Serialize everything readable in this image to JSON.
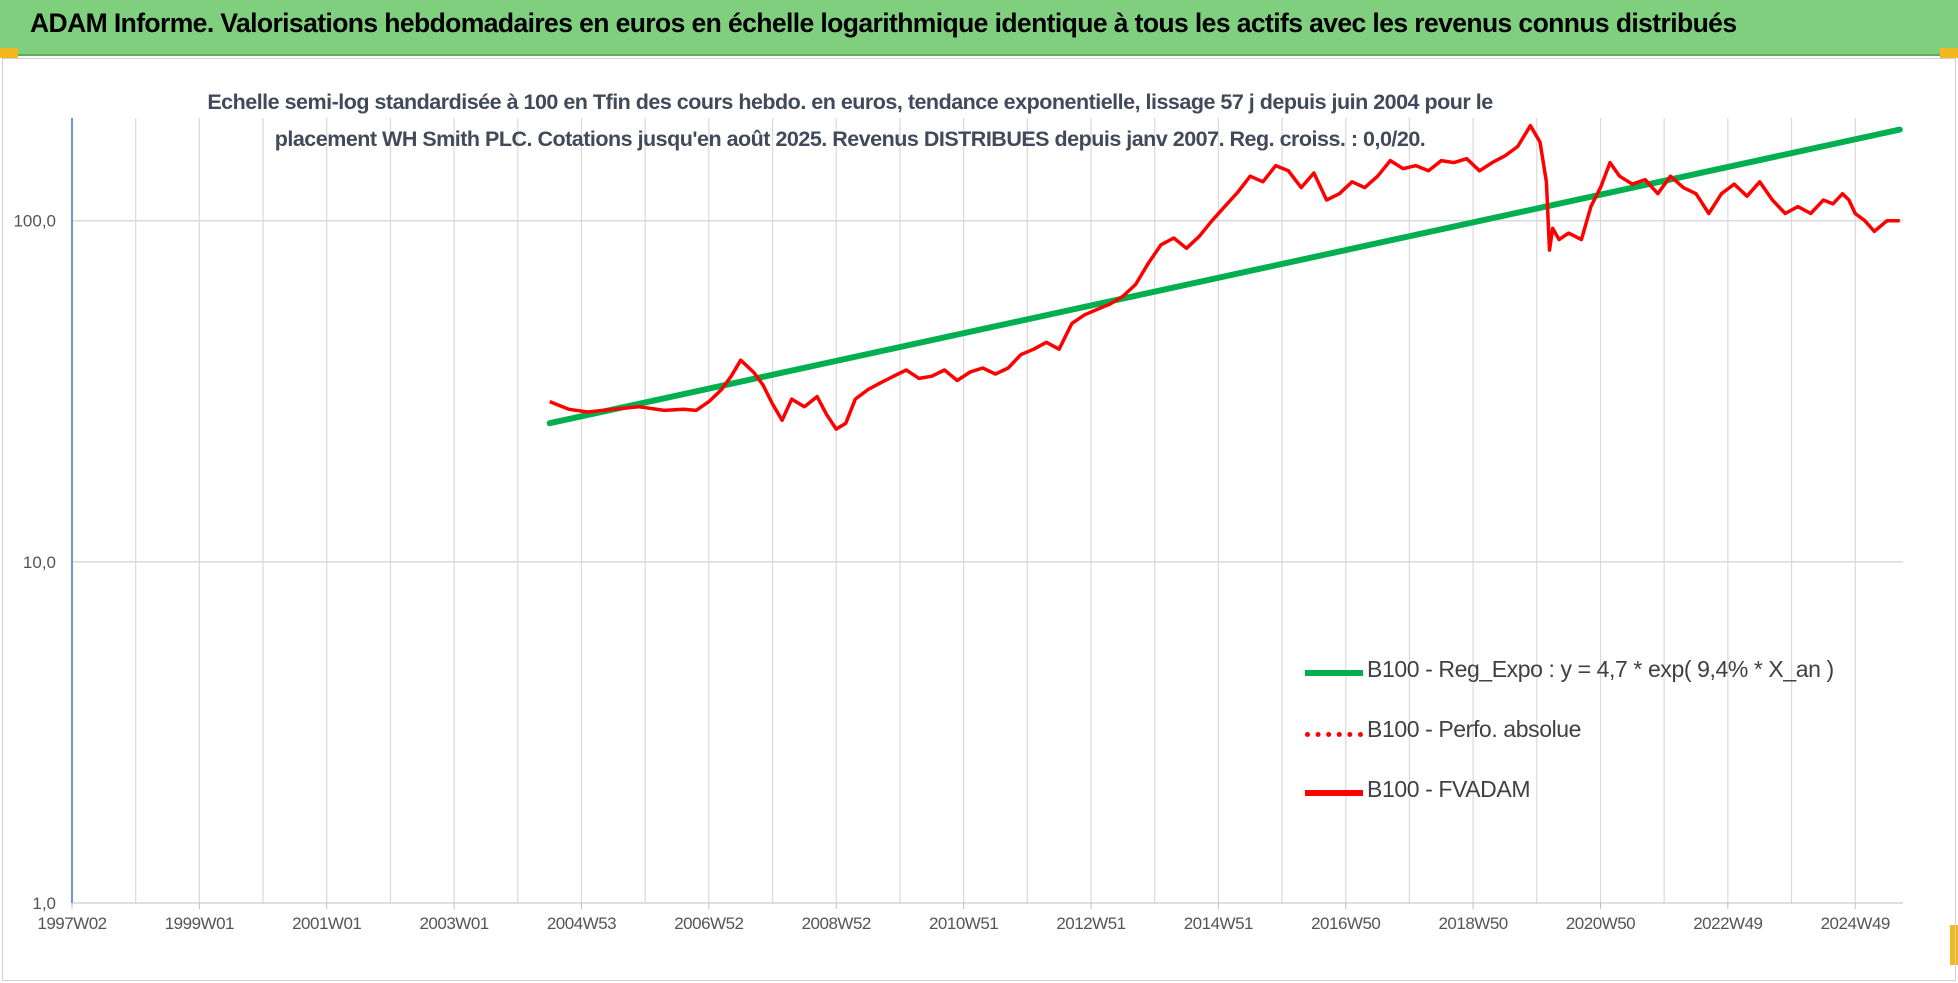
{
  "header": {
    "title": "ADAM Informe. Valorisations hebdomadaires en euros en échelle logarithmique identique à tous les actifs avec les revenus connus distribués"
  },
  "colors": {
    "banner": "#7fcf7f",
    "regression": "#00b050",
    "performance": "#ff0000",
    "fvadam": "#ff0000",
    "grid": "#d9d9d9",
    "corner": "#f2b81f"
  },
  "chart_data": {
    "type": "line",
    "title_lines": [
      "Echelle semi-log standardisée à 100 en Tfin des cours hebdo. en euros, tendance exponentielle, lissage 57 j depuis juin 2004 pour le",
      "placement WH Smith PLC. Cotations jusqu'en août 2025. Revenus DISTRIBUES depuis janv 2007. Reg. croiss. : 0,0/20."
    ],
    "y_scale": "log",
    "ylim": [
      1,
      200
    ],
    "y_ticks": [
      {
        "value": 1,
        "label": "1,0"
      },
      {
        "value": 10,
        "label": "10,0"
      },
      {
        "value": 100,
        "label": "100,0"
      }
    ],
    "xlim": [
      1997.0,
      2025.75
    ],
    "x_ticks": [
      {
        "value": 1997.0,
        "label": "1997W02"
      },
      {
        "value": 1999.0,
        "label": "1999W01"
      },
      {
        "value": 2001.0,
        "label": "2001W01"
      },
      {
        "value": 2003.0,
        "label": "2003W01"
      },
      {
        "value": 2005.0,
        "label": "2004W53"
      },
      {
        "value": 2007.0,
        "label": "2006W52"
      },
      {
        "value": 2009.0,
        "label": "2008W52"
      },
      {
        "value": 2011.0,
        "label": "2010W51"
      },
      {
        "value": 2013.0,
        "label": "2012W51"
      },
      {
        "value": 2015.0,
        "label": "2014W51"
      },
      {
        "value": 2017.0,
        "label": "2016W50"
      },
      {
        "value": 2019.0,
        "label": "2018W50"
      },
      {
        "value": 2021.0,
        "label": "2020W50"
      },
      {
        "value": 2023.0,
        "label": "2022W49"
      },
      {
        "value": 2025.0,
        "label": "2024W49"
      }
    ],
    "grid": true,
    "legend_position": "bottom-right",
    "series": [
      {
        "name": "B100 - Reg_Expo : y = 4,7 * exp( 9,4% * X_an )",
        "style": "solid-thick",
        "x": [
          2004.5,
          2025.7
        ],
        "y": [
          25.5,
          185.0
        ]
      },
      {
        "name": "B100 - Perfo. absolue",
        "style": "dotted",
        "x": [],
        "y": []
      },
      {
        "name": "B100 - FVADAM",
        "style": "solid",
        "x": [
          2004.5,
          2004.8,
          2005.1,
          2005.5,
          2005.9,
          2006.3,
          2006.6,
          2006.8,
          2007.0,
          2007.2,
          2007.35,
          2007.5,
          2007.7,
          2007.85,
          2008.0,
          2008.15,
          2008.3,
          2008.5,
          2008.7,
          2008.85,
          2009.0,
          2009.15,
          2009.3,
          2009.5,
          2009.7,
          2009.9,
          2010.1,
          2010.3,
          2010.5,
          2010.7,
          2010.9,
          2011.1,
          2011.3,
          2011.5,
          2011.7,
          2011.9,
          2012.1,
          2012.3,
          2012.5,
          2012.7,
          2012.9,
          2013.1,
          2013.3,
          2013.5,
          2013.7,
          2013.9,
          2014.1,
          2014.3,
          2014.5,
          2014.7,
          2014.9,
          2015.1,
          2015.3,
          2015.5,
          2015.7,
          2015.9,
          2016.1,
          2016.3,
          2016.5,
          2016.7,
          2016.9,
          2017.1,
          2017.3,
          2017.5,
          2017.7,
          2017.9,
          2018.1,
          2018.3,
          2018.5,
          2018.7,
          2018.9,
          2019.1,
          2019.3,
          2019.5,
          2019.7,
          2019.9,
          2020.05,
          2020.15,
          2020.2,
          2020.25,
          2020.35,
          2020.5,
          2020.7,
          2020.85,
          2021.0,
          2021.15,
          2021.3,
          2021.5,
          2021.7,
          2021.9,
          2022.1,
          2022.3,
          2022.5,
          2022.7,
          2022.9,
          2023.1,
          2023.3,
          2023.5,
          2023.7,
          2023.9,
          2024.1,
          2024.3,
          2024.5,
          2024.65,
          2024.8,
          2024.9,
          2025.0,
          2025.15,
          2025.3,
          2025.5,
          2025.7
        ],
        "y": [
          29.5,
          28.0,
          27.5,
          28.0,
          28.5,
          27.8,
          28.0,
          27.8,
          29.5,
          32.0,
          35.0,
          39.0,
          36.0,
          33.0,
          29.0,
          26.0,
          30.0,
          28.5,
          30.5,
          27.0,
          24.5,
          25.5,
          30.0,
          32.0,
          33.5,
          35.0,
          36.5,
          34.5,
          35.0,
          36.5,
          34.0,
          36.0,
          37.0,
          35.5,
          37.0,
          40.5,
          42.0,
          44.0,
          42.0,
          50.0,
          53.0,
          55.0,
          57.0,
          60.0,
          65.0,
          75.0,
          85.0,
          89.0,
          83.0,
          90.0,
          100.0,
          110.0,
          121.0,
          135.0,
          130.0,
          145.0,
          140.0,
          125.0,
          138.0,
          115.0,
          120.0,
          130.0,
          125.0,
          135.0,
          150.0,
          142.0,
          145.0,
          140.0,
          150.0,
          148.0,
          152.0,
          140.0,
          148.0,
          155.0,
          165.0,
          190.0,
          170.0,
          130.0,
          82.0,
          95.0,
          88.0,
          92.0,
          88.0,
          110.0,
          125.0,
          148.0,
          135.0,
          128.0,
          132.0,
          120.0,
          135.0,
          125.0,
          120.0,
          105.0,
          120.0,
          128.0,
          118.0,
          130.0,
          115.0,
          105.0,
          110.0,
          105.0,
          115.0,
          112.0,
          120.0,
          115.0,
          105.0,
          100.0,
          93.0,
          100.0,
          100.0
        ]
      }
    ]
  }
}
